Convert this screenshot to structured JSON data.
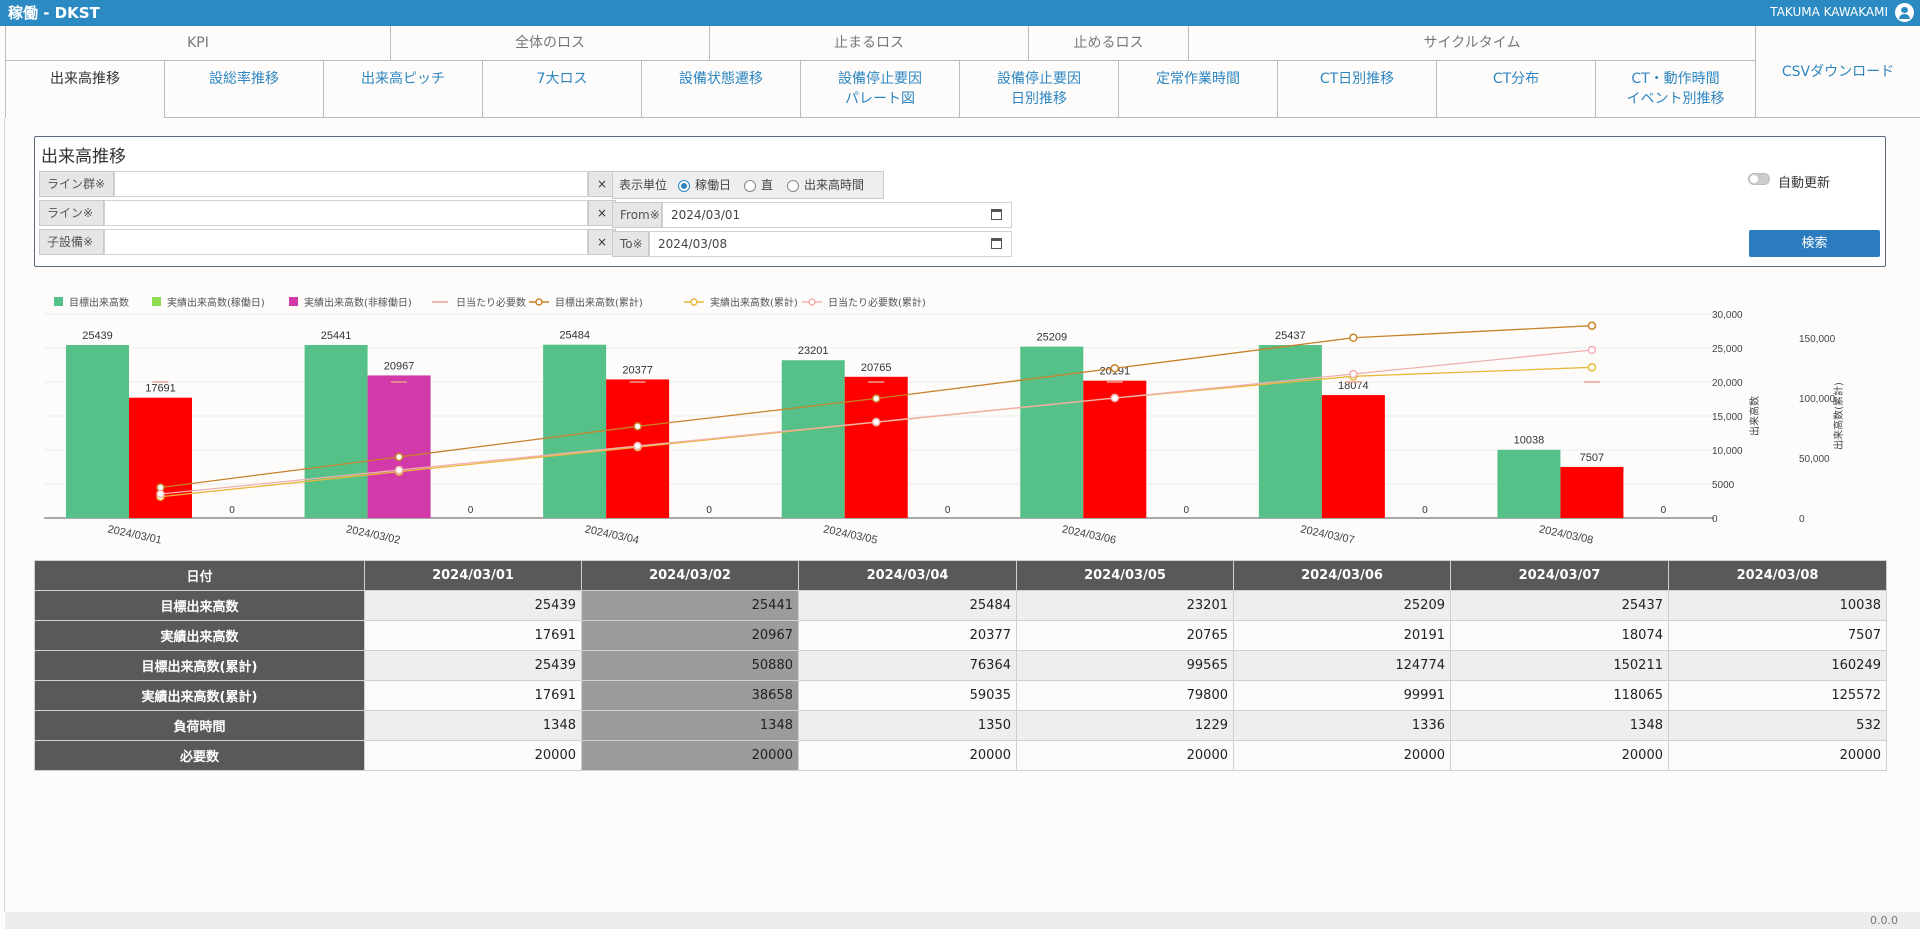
{
  "app": {
    "title": "稼働 - DKST",
    "user": "TAKUMA KAWAKAMI"
  },
  "nav": {
    "groups": [
      "KPI",
      "全体のロス",
      "止まるロス",
      "止めるロス",
      "サイクルタイム"
    ],
    "tabs": [
      "出来高推移",
      "設総率推移",
      "出来高ピッチ",
      "7大ロス",
      "設備状態遷移",
      "設備停止要因\nパレート図",
      "設備停止要因\n日別推移",
      "定常作業時間",
      "CT日別推移",
      "CT分布",
      "CT・動作時間\nイベント別推移"
    ],
    "csv": "CSVダウンロード"
  },
  "panel": {
    "title": "出来高推移",
    "line_group_label": "ライン群※",
    "line_label": "ライン※",
    "child_label": "子設備※",
    "clear": "×",
    "unit_label": "表示単位",
    "unit_options": [
      "稼働日",
      "直",
      "出来高時間"
    ],
    "unit_selected": "稼働日",
    "from_label": "From※",
    "from_value": "2024/03/01",
    "to_label": "To※",
    "to_value": "2024/03/08",
    "auto_update": "自動更新",
    "auto_update_on": false,
    "search": "検索"
  },
  "chart_data": {
    "type": "bar",
    "categories": [
      "2024/03/01",
      "2024/03/02",
      "2024/03/04",
      "2024/03/05",
      "2024/03/06",
      "2024/03/07",
      "2024/03/08"
    ],
    "series": [
      {
        "name": "目標出来高数",
        "kind": "bar",
        "color": "#55c088",
        "values": [
          25439,
          25441,
          25484,
          23201,
          25209,
          25437,
          10038
        ]
      },
      {
        "name": "実績出来高数(稼働日)",
        "kind": "bar",
        "color": "#8fdc4e",
        "values": [
          null,
          null,
          null,
          null,
          null,
          null,
          null
        ]
      },
      {
        "name": "実績出来高数(非稼働日)",
        "kind": "bar",
        "color": "#d13aa8",
        "values": [
          null,
          20967,
          null,
          null,
          null,
          null,
          null
        ]
      },
      {
        "name": "日当たり必要数",
        "kind": "marker",
        "color": "#e8a090",
        "values": [
          20000,
          20000,
          20000,
          20000,
          20000,
          20000,
          20000
        ]
      },
      {
        "name": "目標出来高数(累計)",
        "kind": "line",
        "axis": "right",
        "color": "#c8822a",
        "values": [
          25439,
          50880,
          76364,
          99565,
          124774,
          150211,
          160249
        ]
      },
      {
        "name": "実績出来高数(累計)",
        "kind": "line",
        "axis": "right",
        "color": "#e8b83a",
        "values": [
          17691,
          38658,
          59035,
          79800,
          99991,
          118065,
          125572
        ]
      },
      {
        "name": "日当たり必要数(累計)",
        "kind": "line",
        "axis": "right",
        "color": "#f0b0b0",
        "values": [
          20000,
          40000,
          60000,
          80000,
          100000,
          120000,
          140000
        ]
      }
    ],
    "actual_red": {
      "color": "#ff0000",
      "values": [
        17691,
        null,
        20377,
        20765,
        20191,
        18074,
        7507
      ]
    },
    "zero_labels": [
      0,
      0,
      0,
      0,
      0,
      0,
      0
    ],
    "y_left": {
      "label": "出来高数",
      "ticks": [
        "0",
        "5000",
        "10,000",
        "15,000",
        "20,000",
        "25,000",
        "30,000"
      ],
      "range": [
        0,
        30000
      ]
    },
    "y_right": {
      "label": "出来高数(累計)",
      "ticks": [
        "0",
        "50,000",
        "100,000",
        "150,000"
      ],
      "range": [
        0,
        170000
      ]
    },
    "legend_position": "top-left",
    "grid": true
  },
  "table": {
    "headers": [
      "日付",
      "2024/03/01",
      "2024/03/02",
      "2024/03/04",
      "2024/03/05",
      "2024/03/06",
      "2024/03/07",
      "2024/03/08"
    ],
    "rows": [
      {
        "label": "目標出来高数",
        "values": [
          "25439",
          "25441",
          "25484",
          "23201",
          "25209",
          "25437",
          "10038"
        ]
      },
      {
        "label": "実績出来高数",
        "values": [
          "17691",
          "20967",
          "20377",
          "20765",
          "20191",
          "18074",
          "7507"
        ]
      },
      {
        "label": "目標出来高数(累計)",
        "values": [
          "25439",
          "50880",
          "76364",
          "99565",
          "124774",
          "150211",
          "160249"
        ]
      },
      {
        "label": "実績出来高数(累計)",
        "values": [
          "17691",
          "38658",
          "59035",
          "79800",
          "99991",
          "118065",
          "125572"
        ]
      },
      {
        "label": "負荷時間",
        "values": [
          "1348",
          "1348",
          "1350",
          "1229",
          "1336",
          "1348",
          "532"
        ]
      },
      {
        "label": "必要数",
        "values": [
          "20000",
          "20000",
          "20000",
          "20000",
          "20000",
          "20000",
          "20000"
        ]
      }
    ],
    "highlight_column": 1
  },
  "footer": {
    "version": "0.0.0"
  }
}
